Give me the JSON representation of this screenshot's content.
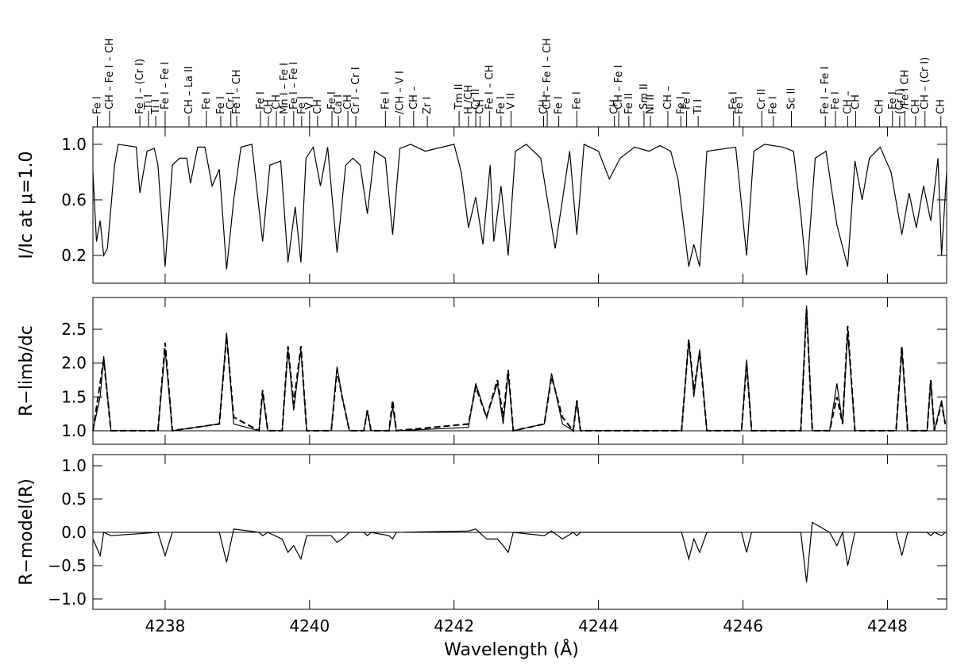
{
  "chart_data": [
    {
      "type": "line",
      "ylabel": "I/Ic at μ=1.0",
      "xlim": [
        4237.0,
        4248.82
      ],
      "ylim": [
        0.0,
        1.125
      ],
      "yticks": [
        0.2,
        0.6,
        {
          "value": 1,
          "label": "1.0"
        }
      ],
      "color": "#000",
      "x": [
        4237.0,
        4237.05,
        4237.1,
        4237.15,
        4237.2,
        4237.3,
        4237.35,
        4237.6,
        4237.65,
        4237.75,
        4237.85,
        4237.9,
        4238.0,
        4238.1,
        4238.2,
        4238.3,
        4238.35,
        4238.45,
        4238.55,
        4238.65,
        4238.75,
        4238.85,
        4238.95,
        4239.05,
        4239.2,
        4239.35,
        4239.45,
        4239.6,
        4239.7,
        4239.8,
        4239.88,
        4239.95,
        4240.05,
        4240.15,
        4240.25,
        4240.38,
        4240.5,
        4240.6,
        4240.7,
        4240.8,
        4240.9,
        4241.05,
        4241.15,
        4241.25,
        4241.4,
        4241.6,
        4242.0,
        4242.1,
        4242.2,
        4242.3,
        4242.4,
        4242.5,
        4242.55,
        4242.65,
        4242.75,
        4242.85,
        4243.0,
        4243.2,
        4243.4,
        4243.5,
        4243.6,
        4243.7,
        4243.8,
        4244.0,
        4244.15,
        4244.3,
        4244.5,
        4244.7,
        4244.85,
        4245.0,
        4245.1,
        4245.25,
        4245.32,
        4245.4,
        4245.5,
        4245.9,
        4246.05,
        4246.15,
        4246.3,
        4246.55,
        4246.7,
        4246.8,
        4246.88,
        4247.0,
        4247.15,
        4247.3,
        4247.45,
        4247.55,
        4247.65,
        4247.75,
        4247.9,
        4248.05,
        4248.2,
        4248.3,
        4248.4,
        4248.5,
        4248.6,
        4248.7,
        4248.75,
        4248.82
      ],
      "values": [
        0.8,
        0.3,
        0.45,
        0.2,
        0.25,
        0.85,
        1.0,
        0.98,
        0.65,
        0.95,
        0.97,
        0.85,
        0.12,
        0.85,
        0.9,
        0.9,
        0.72,
        0.98,
        0.98,
        0.7,
        0.82,
        0.1,
        0.6,
        0.98,
        1.0,
        0.3,
        0.85,
        0.88,
        0.15,
        0.55,
        0.15,
        0.9,
        0.98,
        0.7,
        0.98,
        0.22,
        0.85,
        0.9,
        0.85,
        0.5,
        0.95,
        0.9,
        0.35,
        0.97,
        1.0,
        0.95,
        1.0,
        0.8,
        0.4,
        0.62,
        0.28,
        0.85,
        0.3,
        0.7,
        0.2,
        0.95,
        1.0,
        0.9,
        0.25,
        0.6,
        0.95,
        0.35,
        1.0,
        0.95,
        0.75,
        0.9,
        0.98,
        0.95,
        0.99,
        0.95,
        0.75,
        0.12,
        0.28,
        0.12,
        0.95,
        0.98,
        0.2,
        0.95,
        1.0,
        0.98,
        0.95,
        0.5,
        0.06,
        0.9,
        0.95,
        0.42,
        0.12,
        0.88,
        0.6,
        0.9,
        0.98,
        0.8,
        0.35,
        0.65,
        0.4,
        0.7,
        0.45,
        0.9,
        0.2,
        0.8
      ],
      "annotations": [
        {
          "x": 4237.06,
          "label": "Fe I"
        },
        {
          "x": 4237.23,
          "label": "CH – Fe I – CH"
        },
        {
          "x": 4237.65,
          "label": "Fe I – (Cr I)"
        },
        {
          "x": 4237.77,
          "label": "Ti I"
        },
        {
          "x": 4237.87,
          "label": "Ti I"
        },
        {
          "x": 4238.0,
          "label": "Fe I – Fe I"
        },
        {
          "x": 4238.33,
          "label": "CH – La II"
        },
        {
          "x": 4238.57,
          "label": "Fe I"
        },
        {
          "x": 4238.77,
          "label": "Fe I"
        },
        {
          "x": 4238.91,
          "label": "Cr I"
        },
        {
          "x": 4238.99,
          "label": "Fe I – CH"
        },
        {
          "x": 4239.32,
          "label": "Fe I"
        },
        {
          "x": 4239.43,
          "label": "CH"
        },
        {
          "x": 4239.54,
          "label": "CH"
        },
        {
          "x": 4239.65,
          "label": "Mn I – Fe I"
        },
        {
          "x": 4239.78,
          "label": "Fe I – Fe I"
        },
        {
          "x": 4239.89,
          "label": "Fe I"
        },
        {
          "x": 4240.0,
          "label": "V I"
        },
        {
          "x": 4240.11,
          "label": "CH"
        },
        {
          "x": 4240.31,
          "label": "Fe I"
        },
        {
          "x": 4240.4,
          "label": "Ca I"
        },
        {
          "x": 4240.53,
          "label": "CH"
        },
        {
          "x": 4240.64,
          "label": "Cr I – Cr I"
        },
        {
          "x": 4241.05,
          "label": "Fe I"
        },
        {
          "x": 4241.25,
          "label": "/CH – V I"
        },
        {
          "x": 4241.44,
          "label": "CH –"
        },
        {
          "x": 4241.63,
          "label": "Zr I"
        },
        {
          "x": 4242.07,
          "label": "Tm II"
        },
        {
          "x": 4242.2,
          "label": "H /CH"
        },
        {
          "x": 4242.3,
          "label": "Cr II"
        },
        {
          "x": 4242.36,
          "label": "CH"
        },
        {
          "x": 4242.49,
          "label": "Fe I – CH"
        },
        {
          "x": 4242.65,
          "label": "Fe I"
        },
        {
          "x": 4242.79,
          "label": "V II"
        },
        {
          "x": 4243.24,
          "label": "CH –"
        },
        {
          "x": 4243.29,
          "label": "CH – Fe I – CH"
        },
        {
          "x": 4243.45,
          "label": "Fe I"
        },
        {
          "x": 4243.7,
          "label": "Fe I"
        },
        {
          "x": 4244.22,
          "label": "CH"
        },
        {
          "x": 4244.28,
          "label": "CH – Fe I"
        },
        {
          "x": 4244.42,
          "label": "Fe II"
        },
        {
          "x": 4244.63,
          "label": "Sm II"
        },
        {
          "x": 4244.72,
          "label": "Ni II"
        },
        {
          "x": 4244.96,
          "label": "CH –"
        },
        {
          "x": 4245.14,
          "label": "Fe I"
        },
        {
          "x": 4245.22,
          "label": "Fe I"
        },
        {
          "x": 4245.38,
          "label": "Ti I"
        },
        {
          "x": 4245.87,
          "label": "Fe I"
        },
        {
          "x": 4245.95,
          "label": "Fe I"
        },
        {
          "x": 4246.26,
          "label": "Cr II"
        },
        {
          "x": 4246.42,
          "label": "Fe I"
        },
        {
          "x": 4246.67,
          "label": "Sc II"
        },
        {
          "x": 4247.14,
          "label": "Fe I – Fe I"
        },
        {
          "x": 4247.28,
          "label": "Fe I"
        },
        {
          "x": 4247.45,
          "label": "CH –"
        },
        {
          "x": 4247.56,
          "label": "CH"
        },
        {
          "x": 4247.89,
          "label": "CH"
        },
        {
          "x": 4248.07,
          "label": "Fe I"
        },
        {
          "x": 4248.17,
          "label": "(Cr I)"
        },
        {
          "x": 4248.24,
          "label": "/Fe I CH"
        },
        {
          "x": 4248.39,
          "label": "CH"
        },
        {
          "x": 4248.52,
          "label": "CH – (Cr I)"
        },
        {
          "x": 4248.74,
          "label": "CH"
        }
      ]
    },
    {
      "type": "line",
      "ylabel": "R−limb/dc",
      "xlim": [
        4237.0,
        4248.82
      ],
      "ylim": [
        0.8,
        2.97
      ],
      "yticks": [
        {
          "value": 1,
          "label": "1.0"
        },
        1.5,
        {
          "value": 2,
          "label": "2.0"
        },
        2.5
      ],
      "hline": 1,
      "x": [
        4237.0,
        4237.1,
        4237.15,
        4237.25,
        4237.9,
        4238.0,
        4238.1,
        4238.75,
        4238.85,
        4238.95,
        4239.3,
        4239.35,
        4239.42,
        4239.62,
        4239.7,
        4239.78,
        4239.88,
        4239.96,
        4240.3,
        4240.38,
        4240.45,
        4240.55,
        4240.75,
        4240.8,
        4240.85,
        4241.1,
        4241.15,
        4241.2,
        4242.2,
        4242.3,
        4242.45,
        4242.6,
        4242.68,
        4242.75,
        4242.82,
        4243.25,
        4243.35,
        4243.5,
        4243.65,
        4243.7,
        4243.75,
        4245.15,
        4245.25,
        4245.32,
        4245.4,
        4245.5,
        4245.98,
        4246.05,
        4246.12,
        4246.8,
        4246.88,
        4246.96,
        4247.2,
        4247.3,
        4247.38,
        4247.45,
        4247.55,
        4248.12,
        4248.2,
        4248.28,
        4248.55,
        4248.6,
        4248.65,
        4248.75,
        4248.8
      ],
      "series": [
        {
          "color": "#000",
          "dashed": false,
          "values": [
            1.0,
            1.5,
            2.1,
            1.0,
            1.0,
            2.2,
            1.0,
            1.1,
            2.45,
            1.1,
            1.0,
            1.55,
            1.0,
            1.0,
            2.2,
            1.3,
            2.2,
            1.0,
            1.0,
            1.95,
            1.5,
            1.0,
            1.0,
            1.3,
            1.0,
            1.0,
            1.35,
            1.0,
            1.05,
            1.7,
            1.2,
            1.7,
            1.1,
            1.85,
            1.0,
            1.1,
            1.85,
            1.1,
            1.0,
            1.45,
            1.0,
            1.0,
            2.35,
            1.5,
            2.2,
            1.0,
            1.0,
            2.05,
            1.0,
            1.0,
            2.85,
            1.0,
            1.0,
            1.7,
            1.1,
            2.45,
            1.0,
            1.0,
            2.2,
            1.0,
            1.0,
            1.75,
            1.0,
            1.45,
            1.1
          ]
        },
        {
          "color": "#000",
          "dashed": true,
          "values": [
            1.0,
            1.7,
            2.05,
            1.0,
            1.0,
            2.3,
            1.0,
            1.1,
            2.4,
            1.2,
            1.0,
            1.6,
            1.0,
            1.0,
            2.25,
            1.4,
            2.25,
            1.0,
            1.0,
            1.9,
            1.5,
            1.0,
            1.0,
            1.3,
            1.0,
            1.0,
            1.45,
            1.0,
            1.1,
            1.65,
            1.2,
            1.75,
            1.2,
            1.9,
            1.0,
            1.1,
            1.8,
            1.2,
            1.0,
            1.45,
            1.0,
            1.0,
            2.35,
            1.6,
            2.15,
            1.0,
            1.0,
            2.0,
            1.0,
            1.0,
            2.8,
            1.0,
            1.0,
            1.5,
            1.1,
            2.55,
            1.0,
            1.0,
            2.25,
            1.0,
            1.0,
            1.75,
            1.0,
            1.4,
            1.1
          ]
        }
      ]
    },
    {
      "type": "line",
      "ylabel": "R−model(R)",
      "xlabel": "Wavelength (Å)",
      "xlim": [
        4237.0,
        4248.82
      ],
      "ylim": [
        -1.155,
        1.167
      ],
      "yticks": [
        {
          "value": -1,
          "label": "−1.0"
        },
        {
          "value": -0.5,
          "label": "−0.5"
        },
        {
          "value": 0,
          "label": "0.0"
        },
        0.5,
        {
          "value": 1,
          "label": "1.0"
        }
      ],
      "hline": 0,
      "xticks": [
        4238,
        4240,
        4242,
        4244,
        4246,
        4248
      ],
      "x": [
        4237.0,
        4237.1,
        4237.15,
        4237.25,
        4237.9,
        4238.0,
        4238.1,
        4238.75,
        4238.85,
        4238.95,
        4239.3,
        4239.35,
        4239.42,
        4239.62,
        4239.7,
        4239.78,
        4239.88,
        4239.96,
        4240.3,
        4240.38,
        4240.45,
        4240.55,
        4240.75,
        4240.8,
        4240.85,
        4241.1,
        4241.15,
        4241.2,
        4242.2,
        4242.3,
        4242.45,
        4242.6,
        4242.68,
        4242.75,
        4242.82,
        4243.25,
        4243.35,
        4243.5,
        4243.65,
        4243.7,
        4243.75,
        4245.15,
        4245.25,
        4245.32,
        4245.4,
        4245.5,
        4245.98,
        4246.05,
        4246.12,
        4246.8,
        4246.88,
        4246.96,
        4247.2,
        4247.3,
        4247.38,
        4247.45,
        4247.55,
        4248.12,
        4248.2,
        4248.28,
        4248.55,
        4248.6,
        4248.65,
        4248.75,
        4248.8
      ],
      "color": "#000",
      "values": [
        -0.1,
        -0.35,
        0.0,
        -0.05,
        0.0,
        -0.35,
        0.0,
        0.0,
        -0.45,
        0.05,
        0.0,
        -0.05,
        0.0,
        -0.1,
        -0.3,
        -0.2,
        -0.4,
        -0.05,
        -0.05,
        -0.15,
        -0.1,
        0.0,
        0.0,
        -0.05,
        0.0,
        -0.05,
        -0.1,
        0.0,
        0.02,
        0.05,
        -0.1,
        -0.1,
        -0.2,
        -0.3,
        0.0,
        -0.05,
        0.02,
        -0.1,
        0.0,
        -0.05,
        0.0,
        0.0,
        -0.4,
        -0.1,
        -0.3,
        0.0,
        0.0,
        -0.3,
        0.0,
        0.0,
        -0.75,
        0.15,
        0.0,
        -0.2,
        0.0,
        -0.5,
        0.0,
        0.0,
        -0.35,
        0.0,
        0.0,
        -0.05,
        0.0,
        -0.05,
        0.0
      ]
    }
  ]
}
